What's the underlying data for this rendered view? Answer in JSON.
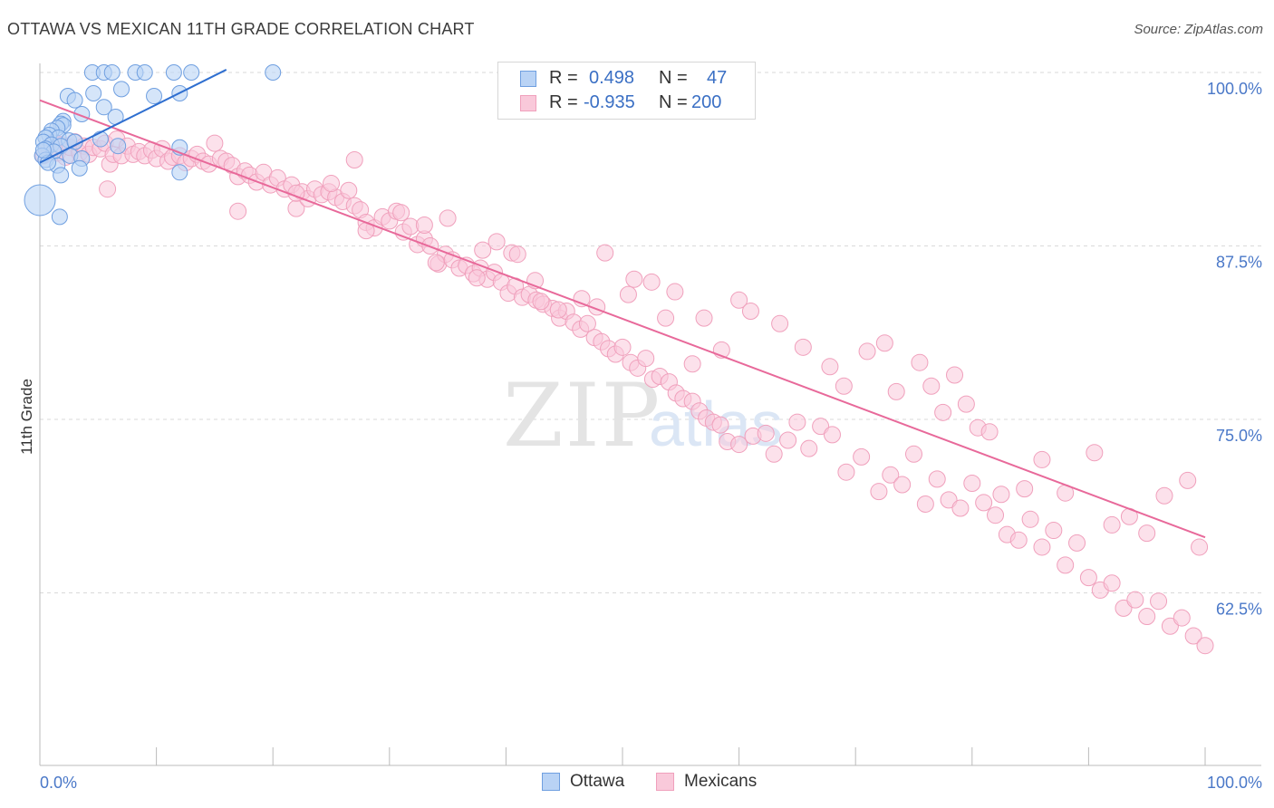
{
  "header": {
    "title": "OTTAWA VS MEXICAN 11TH GRADE CORRELATION CHART",
    "source": "Source: ZipAtlas.com"
  },
  "watermark": {
    "zip": "ZIP",
    "atlas": "atlas"
  },
  "legend": {
    "rows": [
      {
        "series": "Ottawa",
        "r_label": "R =",
        "r_value": "0.498",
        "n_label": "N =",
        "n_value": "47",
        "color": "#7aa7e6"
      },
      {
        "series": "Mexicans",
        "r_label": "R =",
        "r_value": "-0.935",
        "n_label": "N =",
        "n_value": "200",
        "color": "#f3a3bf"
      }
    ]
  },
  "bottom_legend": {
    "items": [
      "Ottawa",
      "Mexicans"
    ]
  },
  "colors": {
    "ottawa_fill": "#b9d3f5",
    "ottawa_stroke": "#6f9fe0",
    "ottawa_line": "#2f6fd0",
    "mex_fill": "#f9c9da",
    "mex_stroke": "#f0a0bc",
    "mex_line": "#e8699a",
    "grid": "#d9d9d9",
    "tick_text": "#4a78c8"
  },
  "chart_data": {
    "type": "scatter",
    "title": "OTTAWA VS MEXICAN 11TH GRADE CORRELATION CHART",
    "xlabel": "",
    "ylabel": "11th Grade",
    "xlim": [
      0,
      100
    ],
    "ylim": [
      50,
      101.5
    ],
    "x_tick_labels": [
      {
        "value": 0,
        "label": "0.0%"
      },
      {
        "value": 100,
        "label": "100.0%"
      }
    ],
    "y_tick_labels": [
      {
        "value": 100,
        "label": "100.0%"
      },
      {
        "value": 87.5,
        "label": "87.5%"
      },
      {
        "value": 75,
        "label": "75.0%"
      },
      {
        "value": 62.5,
        "label": "62.5%"
      }
    ],
    "series": [
      {
        "name": "Ottawa",
        "r": 0.498,
        "n": 47,
        "trend": {
          "x": [
            0,
            16
          ],
          "y": [
            93.5,
            100.2
          ]
        },
        "points": [
          [
            4.5,
            100
          ],
          [
            5.5,
            100
          ],
          [
            6.2,
            100
          ],
          [
            8.2,
            100
          ],
          [
            9.0,
            100
          ],
          [
            11.5,
            100
          ],
          [
            13,
            100
          ],
          [
            20,
            100
          ],
          [
            7,
            98.8
          ],
          [
            9.8,
            98.3
          ],
          [
            12,
            98.5
          ],
          [
            2.4,
            98.3
          ],
          [
            4.6,
            98.5
          ],
          [
            3.0,
            98.0
          ],
          [
            5.5,
            97.5
          ],
          [
            3.6,
            97.0
          ],
          [
            6.5,
            96.8
          ],
          [
            2.0,
            96.5
          ],
          [
            1.8,
            96.3
          ],
          [
            2.0,
            96.2
          ],
          [
            1.5,
            96.0
          ],
          [
            1.0,
            95.8
          ],
          [
            0.8,
            95.5
          ],
          [
            1.6,
            95.3
          ],
          [
            2.5,
            95.1
          ],
          [
            0.5,
            95.3
          ],
          [
            0.3,
            95.0
          ],
          [
            1.0,
            94.8
          ],
          [
            1.8,
            94.7
          ],
          [
            3.0,
            95.0
          ],
          [
            5.2,
            95.2
          ],
          [
            6.7,
            94.7
          ],
          [
            0.5,
            94.5
          ],
          [
            1.2,
            94.3
          ],
          [
            2.6,
            94.0
          ],
          [
            0.2,
            94.0
          ],
          [
            0.5,
            93.7
          ],
          [
            3.6,
            93.8
          ],
          [
            1.5,
            93.3
          ],
          [
            3.4,
            93.1
          ],
          [
            0.7,
            93.5
          ],
          [
            1.8,
            92.6
          ],
          [
            12.0,
            94.6
          ],
          [
            0.3,
            94.4
          ],
          [
            12.0,
            92.8
          ],
          [
            0,
            90.8
          ],
          [
            1.7,
            89.6
          ]
        ]
      },
      {
        "name": "Mexicans",
        "r": -0.935,
        "n": 200,
        "trend": {
          "x": [
            0,
            100
          ],
          "y": [
            98,
            66.5
          ]
        },
        "points": [
          [
            0.3,
            94.0
          ],
          [
            0.8,
            94.5
          ],
          [
            1.2,
            95.0
          ],
          [
            1.5,
            94.2
          ],
          [
            1.8,
            94.8
          ],
          [
            2.2,
            93.9
          ],
          [
            2.6,
            94.6
          ],
          [
            3.0,
            95.0
          ],
          [
            3.4,
            94.2
          ],
          [
            3.8,
            94.7
          ],
          [
            4.2,
            94.1
          ],
          [
            4.6,
            94.6
          ],
          [
            5.2,
            94.5
          ],
          [
            5.6,
            94.9
          ],
          [
            6.0,
            93.4
          ],
          [
            6.3,
            94.1
          ],
          [
            6.6,
            95.2
          ],
          [
            7.0,
            94.0
          ],
          [
            7.5,
            94.7
          ],
          [
            8.0,
            94.1
          ],
          [
            8.5,
            94.3
          ],
          [
            9.0,
            94.0
          ],
          [
            9.6,
            94.4
          ],
          [
            10.0,
            93.8
          ],
          [
            10.5,
            94.5
          ],
          [
            11.0,
            93.6
          ],
          [
            11.4,
            93.9
          ],
          [
            12.0,
            94.0
          ],
          [
            12.5,
            93.5
          ],
          [
            13.0,
            93.8
          ],
          [
            13.5,
            94.1
          ],
          [
            14.0,
            93.6
          ],
          [
            14.5,
            93.4
          ],
          [
            15.0,
            94.9
          ],
          [
            15.5,
            93.8
          ],
          [
            16.0,
            93.6
          ],
          [
            16.5,
            93.3
          ],
          [
            17.0,
            92.5
          ],
          [
            17.6,
            92.9
          ],
          [
            18.0,
            92.6
          ],
          [
            18.6,
            92.1
          ],
          [
            19.2,
            92.8
          ],
          [
            19.8,
            91.9
          ],
          [
            20.4,
            92.4
          ],
          [
            21.0,
            91.6
          ],
          [
            21.6,
            91.9
          ],
          [
            22.0,
            90.2
          ],
          [
            22.5,
            91.4
          ],
          [
            23.0,
            90.9
          ],
          [
            23.6,
            91.6
          ],
          [
            24.2,
            91.2
          ],
          [
            24.8,
            91.4
          ],
          [
            25.4,
            91.0
          ],
          [
            26.0,
            90.7
          ],
          [
            26.5,
            91.5
          ],
          [
            27.0,
            90.4
          ],
          [
            27.5,
            90.1
          ],
          [
            28.0,
            89.2
          ],
          [
            28.7,
            88.8
          ],
          [
            29.4,
            89.6
          ],
          [
            30.0,
            89.3
          ],
          [
            30.6,
            90.0
          ],
          [
            31.2,
            88.5
          ],
          [
            31.8,
            88.9
          ],
          [
            32.4,
            87.6
          ],
          [
            33.0,
            88.0
          ],
          [
            33.5,
            87.5
          ],
          [
            34.2,
            86.2
          ],
          [
            34.8,
            86.9
          ],
          [
            35.4,
            86.5
          ],
          [
            36.0,
            85.9
          ],
          [
            36.6,
            86.1
          ],
          [
            37.2,
            85.5
          ],
          [
            37.8,
            85.9
          ],
          [
            38.4,
            85.1
          ],
          [
            39.0,
            85.6
          ],
          [
            39.6,
            84.9
          ],
          [
            40.2,
            84.1
          ],
          [
            40.8,
            84.6
          ],
          [
            41.4,
            83.8
          ],
          [
            42.0,
            84.0
          ],
          [
            42.6,
            83.6
          ],
          [
            43.2,
            83.3
          ],
          [
            44.0,
            83.0
          ],
          [
            44.6,
            82.3
          ],
          [
            45.2,
            82.8
          ],
          [
            45.8,
            82.0
          ],
          [
            46.4,
            81.5
          ],
          [
            47.0,
            81.9
          ],
          [
            47.6,
            80.9
          ],
          [
            48.2,
            80.6
          ],
          [
            48.8,
            80.1
          ],
          [
            49.4,
            79.7
          ],
          [
            50.0,
            80.2
          ],
          [
            50.7,
            79.1
          ],
          [
            51.3,
            78.7
          ],
          [
            52.0,
            79.4
          ],
          [
            52.6,
            77.9
          ],
          [
            53.2,
            78.1
          ],
          [
            54.0,
            77.7
          ],
          [
            54.6,
            76.9
          ],
          [
            55.2,
            76.5
          ],
          [
            56.0,
            76.3
          ],
          [
            56.6,
            75.6
          ],
          [
            57.2,
            75.1
          ],
          [
            57.8,
            74.8
          ],
          [
            58.4,
            74.6
          ],
          [
            59.0,
            73.4
          ],
          [
            60.0,
            73.2
          ],
          [
            61.2,
            73.8
          ],
          [
            62.3,
            74.0
          ],
          [
            63.0,
            72.5
          ],
          [
            64.2,
            73.5
          ],
          [
            65.0,
            74.8
          ],
          [
            66.0,
            72.9
          ],
          [
            67.0,
            74.5
          ],
          [
            68.0,
            73.9
          ],
          [
            69.2,
            71.2
          ],
          [
            70.5,
            72.3
          ],
          [
            72.0,
            69.8
          ],
          [
            73.0,
            71.0
          ],
          [
            74.0,
            70.3
          ],
          [
            75.0,
            72.5
          ],
          [
            76.0,
            68.9
          ],
          [
            77.0,
            70.7
          ],
          [
            78.0,
            69.2
          ],
          [
            79.0,
            68.6
          ],
          [
            80.0,
            70.4
          ],
          [
            81.0,
            69.0
          ],
          [
            82.0,
            68.1
          ],
          [
            83.0,
            66.7
          ],
          [
            84.0,
            66.3
          ],
          [
            85.0,
            67.8
          ],
          [
            86.0,
            65.8
          ],
          [
            87.0,
            67.0
          ],
          [
            88.0,
            64.5
          ],
          [
            89.0,
            66.1
          ],
          [
            90.0,
            63.6
          ],
          [
            91.0,
            62.7
          ],
          [
            92.0,
            63.2
          ],
          [
            93.0,
            61.4
          ],
          [
            94.0,
            62.0
          ],
          [
            95.0,
            60.8
          ],
          [
            96.0,
            61.9
          ],
          [
            97.0,
            60.1
          ],
          [
            98.0,
            60.7
          ],
          [
            99.0,
            59.4
          ],
          [
            100.0,
            58.7
          ],
          [
            5.8,
            91.6
          ],
          [
            17.0,
            90.0
          ],
          [
            22.0,
            91.3
          ],
          [
            25.0,
            92.0
          ],
          [
            28.0,
            88.6
          ],
          [
            31.0,
            89.9
          ],
          [
            34.0,
            86.3
          ],
          [
            37.5,
            85.2
          ],
          [
            40.5,
            87.0
          ],
          [
            42.5,
            85.0
          ],
          [
            44.5,
            82.9
          ],
          [
            46.5,
            83.7
          ],
          [
            47.8,
            83.1
          ],
          [
            50.5,
            84.0
          ],
          [
            52.5,
            84.9
          ],
          [
            53.7,
            82.3
          ],
          [
            56.0,
            79.0
          ],
          [
            57.0,
            82.3
          ],
          [
            58.5,
            80.0
          ],
          [
            60.0,
            83.6
          ],
          [
            61.0,
            82.8
          ],
          [
            63.5,
            81.9
          ],
          [
            65.5,
            80.2
          ],
          [
            67.8,
            78.8
          ],
          [
            69.0,
            77.4
          ],
          [
            71.0,
            79.9
          ],
          [
            72.5,
            80.5
          ],
          [
            73.5,
            77.0
          ],
          [
            75.5,
            79.1
          ],
          [
            76.5,
            77.4
          ],
          [
            77.5,
            75.5
          ],
          [
            78.5,
            78.2
          ],
          [
            79.5,
            76.1
          ],
          [
            80.5,
            74.4
          ],
          [
            81.5,
            74.1
          ],
          [
            82.5,
            69.6
          ],
          [
            84.5,
            70.0
          ],
          [
            86.0,
            72.1
          ],
          [
            88.0,
            69.7
          ],
          [
            90.5,
            72.6
          ],
          [
            92.0,
            67.4
          ],
          [
            93.5,
            68.0
          ],
          [
            95.0,
            66.8
          ],
          [
            96.5,
            69.5
          ],
          [
            98.5,
            70.6
          ],
          [
            99.5,
            65.8
          ],
          [
            27.0,
            93.7
          ],
          [
            33.0,
            89.0
          ],
          [
            35.0,
            89.5
          ],
          [
            38.0,
            87.2
          ],
          [
            39.2,
            87.8
          ],
          [
            41.0,
            86.9
          ],
          [
            43.0,
            83.5
          ],
          [
            48.5,
            87.0
          ],
          [
            51.0,
            85.1
          ],
          [
            54.5,
            84.2
          ]
        ]
      }
    ]
  }
}
